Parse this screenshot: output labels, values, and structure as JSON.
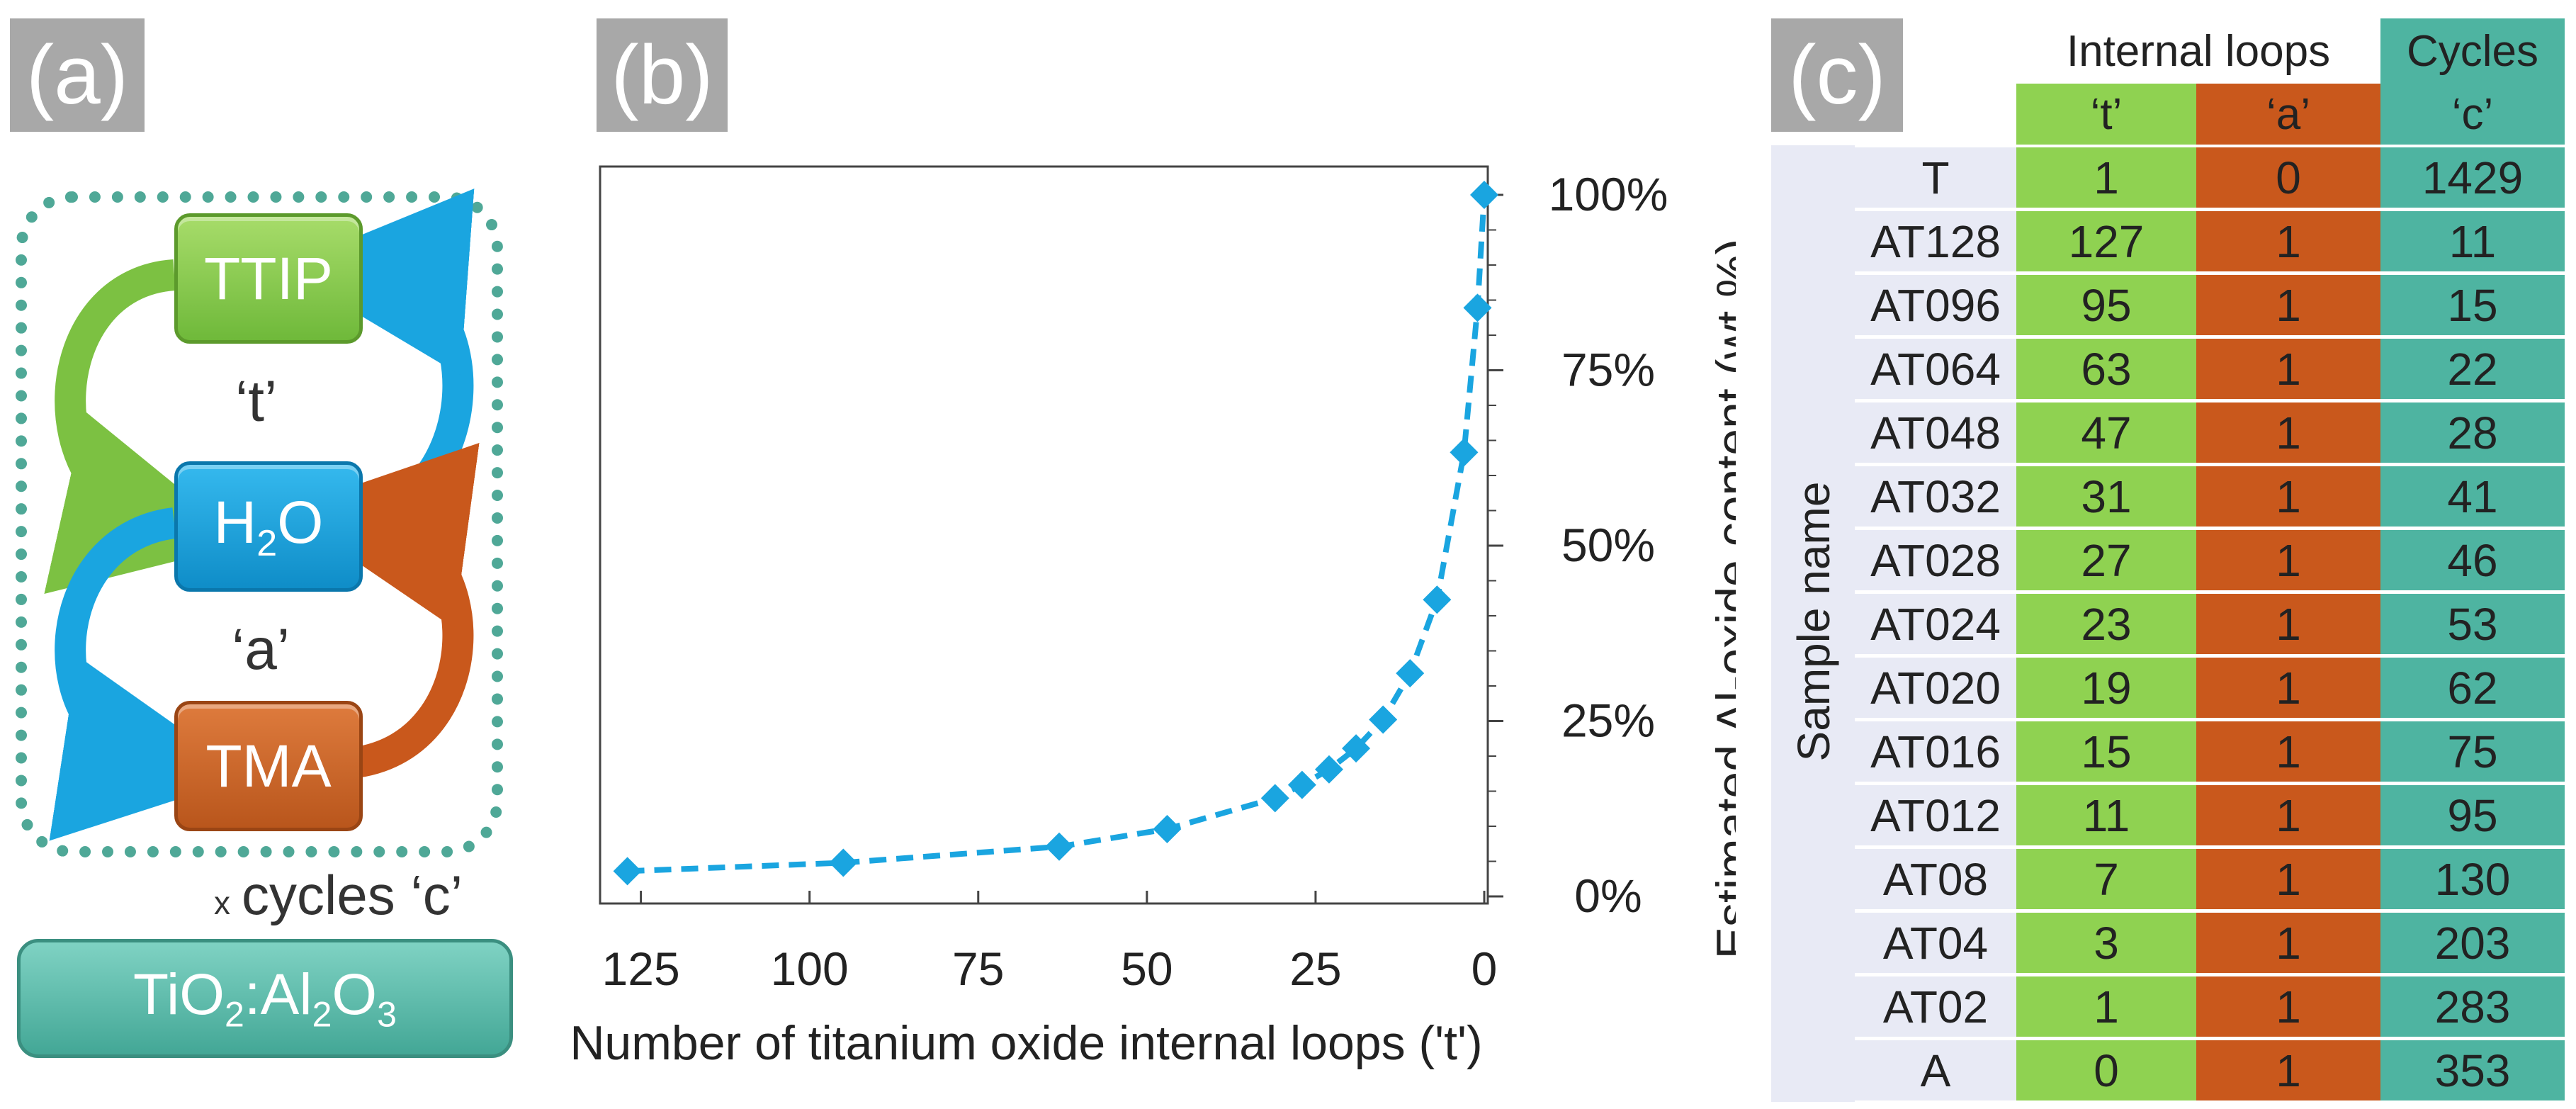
{
  "panels": {
    "a": "(a)",
    "b": "(b)",
    "c": "(c)"
  },
  "diagram": {
    "ttip": "TTIP",
    "h2o_main": "H",
    "h2o_sub": "2",
    "h2o_tail": "O",
    "tma": "TMA",
    "loop_t": "‘t’",
    "loop_a": "‘a’",
    "cycles_x": "x",
    "cycles_label": "cycles ‘c’",
    "result": {
      "p1": "TiO",
      "s1": "2",
      "p2": ":Al",
      "s2": "2",
      "p3": "O",
      "s3": "3"
    },
    "colors": {
      "ttip": "#8dcf54",
      "h2o": "#1aa5e0",
      "tma": "#c9581c",
      "result": "#5fbfae",
      "border": "#4fa897"
    }
  },
  "chart_data": {
    "type": "line",
    "title": "",
    "xlabel": "Number of titanium oxide internal loops ('t')",
    "ylabel": "Estimated Al-oxide content (wt.%)",
    "x_reversed": true,
    "xlim": [
      0,
      130
    ],
    "ylim": [
      0,
      100
    ],
    "x_ticks": [
      125,
      100,
      75,
      50,
      25,
      0
    ],
    "y_ticks": [
      0,
      25,
      50,
      75,
      100
    ],
    "y_tick_labels": [
      "0%",
      "25%",
      "50%",
      "75%",
      "100%"
    ],
    "y_axis_side": "right",
    "series": [
      {
        "name": "Al-oxide content",
        "color": "#1aa5e0",
        "style": "dashed",
        "marker": "diamond",
        "x": [
          127,
          95,
          63,
          47,
          31,
          27,
          23,
          19,
          15,
          11,
          7,
          3,
          1,
          0
        ],
        "y": [
          3.6,
          4.8,
          7.1,
          9.6,
          14.0,
          15.9,
          18.1,
          21.1,
          25.2,
          31.8,
          42.3,
          63.3,
          83.9,
          100
        ]
      }
    ]
  },
  "table": {
    "header_internal": "Internal loops",
    "header_cycles": "Cycles",
    "col_t": "‘t’",
    "col_a": "‘a’",
    "col_c": "‘c’",
    "row_header": "Sample name",
    "rows": [
      {
        "name": "T",
        "t": "1",
        "a": "0",
        "c": "1429"
      },
      {
        "name": "AT128",
        "t": "127",
        "a": "1",
        "c": "11"
      },
      {
        "name": "AT096",
        "t": "95",
        "a": "1",
        "c": "15"
      },
      {
        "name": "AT064",
        "t": "63",
        "a": "1",
        "c": "22"
      },
      {
        "name": "AT048",
        "t": "47",
        "a": "1",
        "c": "28"
      },
      {
        "name": "AT032",
        "t": "31",
        "a": "1",
        "c": "41"
      },
      {
        "name": "AT028",
        "t": "27",
        "a": "1",
        "c": "46"
      },
      {
        "name": "AT024",
        "t": "23",
        "a": "1",
        "c": "53"
      },
      {
        "name": "AT020",
        "t": "19",
        "a": "1",
        "c": "62"
      },
      {
        "name": "AT016",
        "t": "15",
        "a": "1",
        "c": "75"
      },
      {
        "name": "AT012",
        "t": "11",
        "a": "1",
        "c": "95"
      },
      {
        "name": "AT08",
        "t": "7",
        "a": "1",
        "c": "130"
      },
      {
        "name": "AT04",
        "t": "3",
        "a": "1",
        "c": "203"
      },
      {
        "name": "AT02",
        "t": "1",
        "a": "1",
        "c": "283"
      },
      {
        "name": "A",
        "t": "0",
        "a": "1",
        "c": "353"
      }
    ]
  }
}
